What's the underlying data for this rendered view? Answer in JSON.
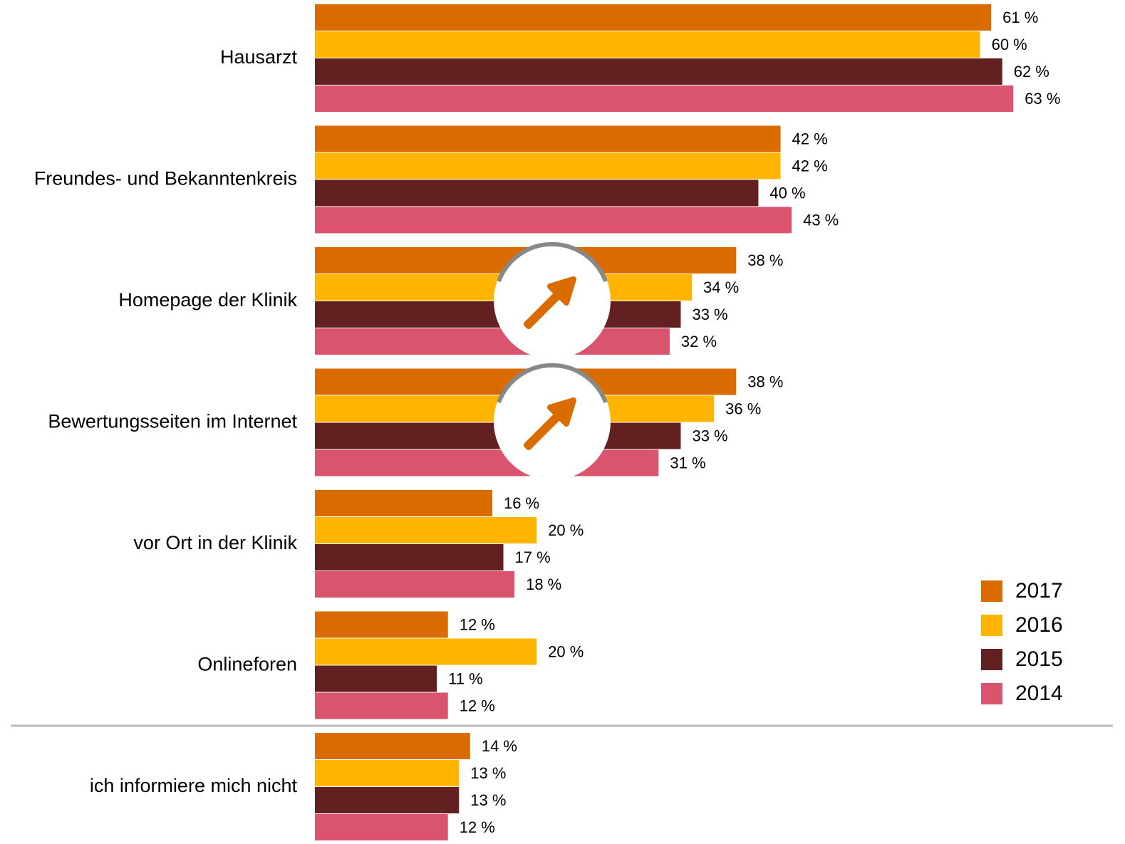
{
  "chart_data": {
    "type": "bar",
    "orientation": "horizontal",
    "categories": [
      "Hausarzt",
      "Freundes- und Bekanntenkreis",
      "Homepage der Klinik",
      "Bewertungsseiten im Internet",
      "vor Ort in der Klinik",
      "Onlineforen",
      "ich informiere mich nicht"
    ],
    "xlim": [
      0,
      70
    ],
    "legend": "bottom-right",
    "series": [
      {
        "name": "2017",
        "color": "#d96b00",
        "values": [
          61,
          42,
          38,
          38,
          16,
          12,
          14
        ],
        "value_labels": [
          "61 %",
          "42 %",
          "38 %",
          "38 %",
          "16 %",
          "12 %",
          "14 %"
        ]
      },
      {
        "name": "2016",
        "color": "#ffb400",
        "values": [
          60,
          42,
          34,
          36,
          20,
          20,
          13
        ],
        "value_labels": [
          "60 %",
          "42 %",
          "34 %",
          "36 %",
          "20 %",
          "20 %",
          "13 %"
        ]
      },
      {
        "name": "2015",
        "color": "#622020",
        "values": [
          62,
          40,
          33,
          33,
          17,
          11,
          13
        ],
        "value_labels": [
          "62 %",
          "40 %",
          "33 %",
          "33 %",
          "17 %",
          "11 %",
          "13 %"
        ]
      },
      {
        "name": "2014",
        "color": "#d9546c",
        "values": [
          63,
          43,
          32,
          31,
          18,
          12,
          12
        ],
        "value_labels": [
          "63 %",
          "43 %",
          "32 %",
          "31 %",
          "18 %",
          "12 %",
          "12 %"
        ]
      }
    ]
  }
}
